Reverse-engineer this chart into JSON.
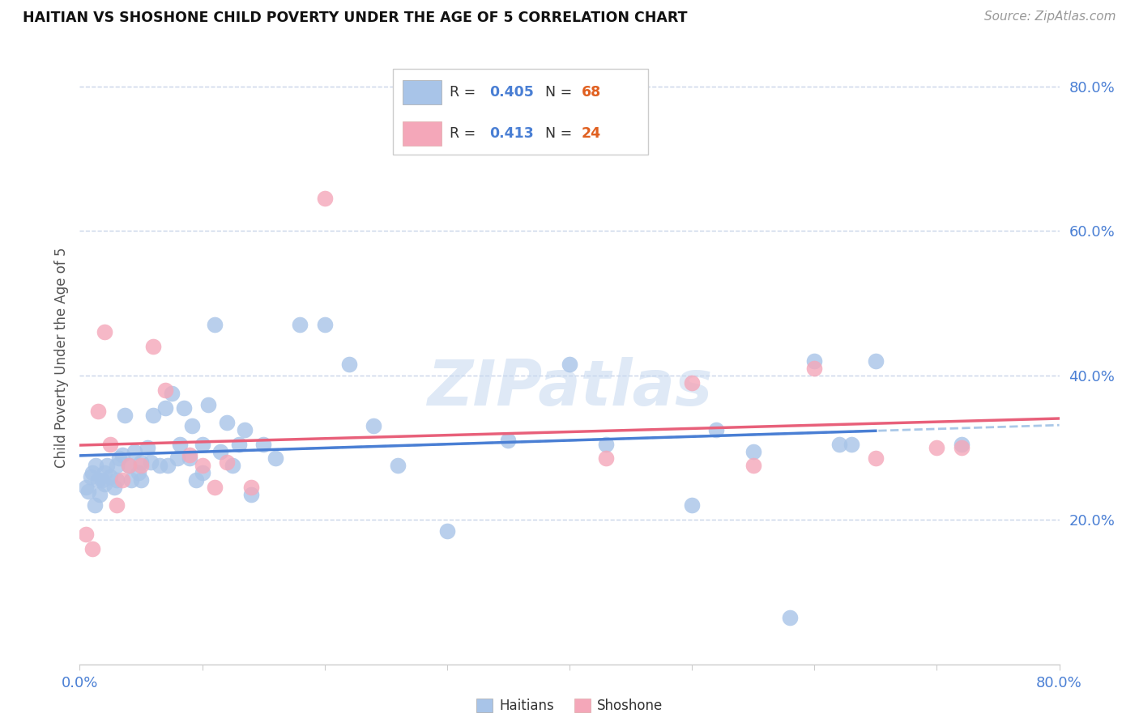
{
  "title": "HAITIAN VS SHOSHONE CHILD POVERTY UNDER THE AGE OF 5 CORRELATION CHART",
  "source": "Source: ZipAtlas.com",
  "ylabel": "Child Poverty Under the Age of 5",
  "xlim": [
    0,
    0.8
  ],
  "ylim": [
    0.0,
    0.85
  ],
  "ytick_labels": [
    "20.0%",
    "40.0%",
    "60.0%",
    "80.0%"
  ],
  "ytick_values": [
    0.2,
    0.4,
    0.6,
    0.8
  ],
  "xtick_values": [
    0.0,
    0.1,
    0.2,
    0.3,
    0.4,
    0.5,
    0.6,
    0.7,
    0.8
  ],
  "haitian_color": "#a8c4e8",
  "shoshone_color": "#f4a7b9",
  "trendline_haitian_solid_color": "#4a7fd4",
  "trendline_haitian_dashed_color": "#aac8e8",
  "trendline_shoshone_color": "#e8607a",
  "background_color": "#ffffff",
  "grid_color": "#c8d4e8",
  "watermark": "ZIPatlas",
  "haitian_x": [
    0.005,
    0.007,
    0.009,
    0.01,
    0.012,
    0.013,
    0.015,
    0.016,
    0.018,
    0.02,
    0.02,
    0.022,
    0.025,
    0.028,
    0.03,
    0.03,
    0.032,
    0.035,
    0.037,
    0.04,
    0.042,
    0.045,
    0.048,
    0.05,
    0.05,
    0.055,
    0.058,
    0.06,
    0.065,
    0.07,
    0.072,
    0.075,
    0.08,
    0.082,
    0.085,
    0.09,
    0.092,
    0.095,
    0.1,
    0.1,
    0.105,
    0.11,
    0.115,
    0.12,
    0.125,
    0.13,
    0.135,
    0.14,
    0.15,
    0.16,
    0.18,
    0.2,
    0.22,
    0.24,
    0.26,
    0.3,
    0.35,
    0.4,
    0.43,
    0.5,
    0.52,
    0.55,
    0.58,
    0.6,
    0.62,
    0.63,
    0.65,
    0.72
  ],
  "haitian_y": [
    0.245,
    0.24,
    0.26,
    0.265,
    0.22,
    0.275,
    0.255,
    0.235,
    0.255,
    0.265,
    0.25,
    0.275,
    0.26,
    0.245,
    0.275,
    0.255,
    0.285,
    0.29,
    0.345,
    0.275,
    0.255,
    0.295,
    0.265,
    0.28,
    0.255,
    0.3,
    0.28,
    0.345,
    0.275,
    0.355,
    0.275,
    0.375,
    0.285,
    0.305,
    0.355,
    0.285,
    0.33,
    0.255,
    0.305,
    0.265,
    0.36,
    0.47,
    0.295,
    0.335,
    0.275,
    0.305,
    0.325,
    0.235,
    0.305,
    0.285,
    0.47,
    0.47,
    0.415,
    0.33,
    0.275,
    0.185,
    0.31,
    0.415,
    0.305,
    0.22,
    0.325,
    0.295,
    0.065,
    0.42,
    0.305,
    0.305,
    0.42,
    0.305
  ],
  "shoshone_x": [
    0.005,
    0.01,
    0.015,
    0.02,
    0.025,
    0.03,
    0.035,
    0.04,
    0.05,
    0.06,
    0.07,
    0.09,
    0.1,
    0.11,
    0.12,
    0.14,
    0.2,
    0.43,
    0.5,
    0.55,
    0.6,
    0.65,
    0.7,
    0.72
  ],
  "shoshone_y": [
    0.18,
    0.16,
    0.35,
    0.46,
    0.305,
    0.22,
    0.255,
    0.275,
    0.275,
    0.44,
    0.38,
    0.29,
    0.275,
    0.245,
    0.28,
    0.245,
    0.645,
    0.285,
    0.39,
    0.275,
    0.41,
    0.285,
    0.3,
    0.3
  ]
}
